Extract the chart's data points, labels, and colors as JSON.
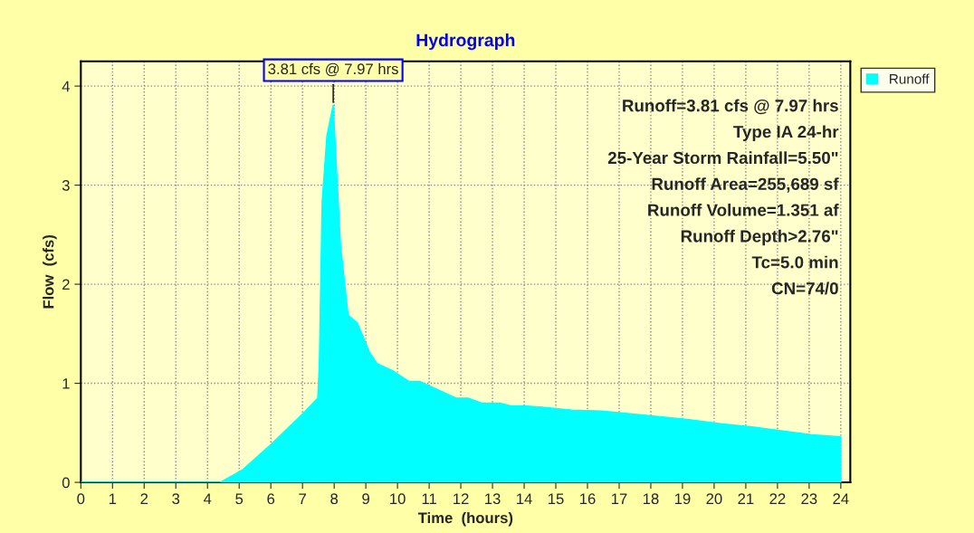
{
  "chart_data": {
    "type": "area",
    "title": "Hydrograph",
    "xlabel": "Time  (hours)",
    "ylabel": "Flow  (cfs)",
    "x": [
      0,
      4.4,
      5.12,
      5.99,
      7.0,
      7.48,
      7.53,
      7.62,
      7.77,
      7.97,
      8.2,
      8.44,
      8.73,
      9.11,
      9.35,
      9.83,
      10.36,
      10.7,
      11.85,
      12.23,
      12.66,
      13.23,
      13.6,
      14.08,
      14.56,
      15.5,
      16.45,
      17.41,
      18.36,
      19.31,
      20.26,
      21.2,
      22.16,
      23.1,
      24.0
    ],
    "series": [
      {
        "name": "Runoff",
        "color": "#00ffff",
        "values": [
          0,
          0,
          0.13,
          0.38,
          0.69,
          0.85,
          1.18,
          2.83,
          3.5,
          3.81,
          2.4,
          1.69,
          1.61,
          1.32,
          1.2,
          1.13,
          1.02,
          1.02,
          0.85,
          0.85,
          0.8,
          0.8,
          0.77,
          0.77,
          0.76,
          0.73,
          0.72,
          0.69,
          0.66,
          0.63,
          0.59,
          0.56,
          0.52,
          0.48,
          0.46
        ]
      }
    ],
    "xlim": [
      0,
      24.3
    ],
    "xticks": [
      0,
      1,
      2,
      3,
      4,
      5,
      6,
      7,
      8,
      9,
      10,
      11,
      12,
      13,
      14,
      15,
      16,
      17,
      18,
      19,
      20,
      21,
      22,
      23,
      24
    ],
    "ylim": [
      0,
      4.25
    ],
    "yticks": [
      0,
      1,
      2,
      3,
      4
    ],
    "grid": true,
    "legend": "top right",
    "annotations": [
      {
        "text": "3.81 cfs @ 7.97 hrs",
        "x": 7.97,
        "y": 3.81
      },
      "Runoff=3.81 cfs @ 7.97 hrs",
      "Type IA 24-hr",
      "25-Year Storm Rainfall=5.50\"",
      "Runoff Area=255,689 sf",
      "Runoff Volume=1.351 af",
      "Runoff Depth>2.76\"",
      "Tc=5.0 min",
      "CN=74/0"
    ]
  }
}
